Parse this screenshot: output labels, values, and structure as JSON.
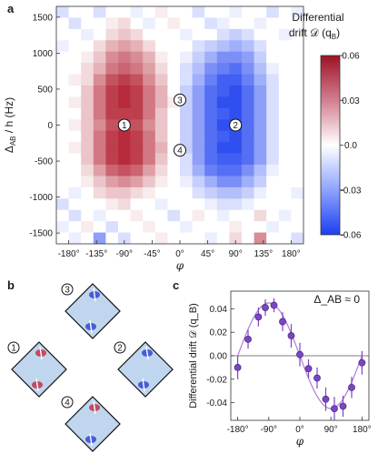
{
  "panels": {
    "a": {
      "label": "a"
    },
    "b": {
      "label": "b"
    },
    "c": {
      "label": "c"
    }
  },
  "heatmap": {
    "xlabel": "φ",
    "ylabel": "Δ_AB / h (Hz)",
    "xticks": [
      "-180°",
      "-135°",
      "-90°",
      "-45°",
      "0°",
      "45°",
      "90°",
      "135°",
      "180°"
    ],
    "yticks": [
      "1500",
      "1000",
      "500",
      "0",
      "-500",
      "-1000",
      "-1500"
    ],
    "markers": [
      {
        "label": "1",
        "phi": -90,
        "delta": 0
      },
      {
        "label": "2",
        "phi": 90,
        "delta": 0
      },
      {
        "label": "3",
        "phi": 0,
        "delta": 350
      },
      {
        "label": "4",
        "phi": 0,
        "delta": -350
      }
    ]
  },
  "colorbar": {
    "title_line1": "Differential",
    "title_line2": "drift 𝒟 (q",
    "title_sub": "B",
    "title_end": ")",
    "ticks": [
      "0.06",
      "0.03",
      "0.0",
      "-0.03",
      "-0.06"
    ],
    "vmin": -0.06,
    "vmax": 0.06
  },
  "lattices": [
    {
      "label": "3",
      "blobs": "blue"
    },
    {
      "label": "1",
      "blobs": "red"
    },
    {
      "label": "2",
      "blobs": "blue"
    },
    {
      "label": "4",
      "blobs": "mixed"
    }
  ],
  "colors": {
    "positive": "#b0182a",
    "negative": "#1c3ff0",
    "neutral": "#ffffff",
    "line": "#b07cd8",
    "marker": "#7b45c4",
    "lattice_bg": "#bfd6ee"
  },
  "chart_data": [
    {
      "type": "heatmap",
      "title": "",
      "xlabel": "φ",
      "ylabel": "Δ_AB / h (Hz)",
      "xlim": [
        -200,
        200
      ],
      "ylim": [
        -1650,
        1650
      ],
      "x_centers_deg": [
        -190,
        -170,
        -150,
        -130,
        -110,
        -90,
        -70,
        -50,
        -30,
        -10,
        10,
        30,
        50,
        70,
        90,
        110,
        130,
        150,
        170,
        190
      ],
      "y_centers_hz": [
        1500,
        1350,
        1200,
        1050,
        900,
        750,
        600,
        450,
        300,
        150,
        0,
        -150,
        -300,
        -450,
        -600,
        -750,
        -900,
        -1050,
        -1200,
        -1350,
        -1500
      ],
      "colorscale_range": [
        -0.06,
        0.06
      ],
      "values_rows_top_to_bottom": [
        [
          -0.01,
          0,
          0,
          -0.01,
          0,
          0,
          -0.005,
          0,
          0.005,
          0,
          0,
          -0.01,
          0,
          0,
          -0.005,
          0,
          0,
          -0.01,
          0,
          -0.005
        ],
        [
          0,
          -0.01,
          0,
          0,
          0.005,
          0.01,
          0,
          -0.005,
          0,
          0.005,
          0,
          0,
          -0.01,
          -0.005,
          0,
          0,
          -0.005,
          0,
          0,
          0
        ],
        [
          0,
          0,
          -0.005,
          0,
          0.01,
          0.015,
          0.01,
          0,
          0,
          0,
          -0.005,
          0,
          0,
          -0.01,
          -0.015,
          -0.01,
          0,
          0,
          -0.005,
          0
        ],
        [
          -0.005,
          0,
          0,
          0.01,
          0.02,
          0.025,
          0.02,
          0.01,
          0,
          0,
          0,
          -0.01,
          -0.015,
          -0.02,
          -0.025,
          -0.02,
          -0.01,
          0,
          0,
          0
        ],
        [
          0,
          0,
          0.005,
          0.015,
          0.03,
          0.035,
          0.03,
          0.02,
          0.005,
          0,
          -0.005,
          -0.015,
          -0.025,
          -0.035,
          -0.035,
          -0.03,
          -0.015,
          0,
          0,
          0
        ],
        [
          0,
          0,
          0.01,
          0.02,
          0.035,
          0.04,
          0.035,
          0.025,
          0.01,
          0,
          -0.01,
          -0.02,
          -0.035,
          -0.04,
          -0.045,
          -0.035,
          -0.02,
          -0.005,
          0,
          0
        ],
        [
          0,
          0.005,
          0.01,
          0.03,
          0.045,
          0.05,
          0.045,
          0.03,
          0.015,
          0,
          -0.01,
          -0.025,
          -0.04,
          -0.05,
          -0.05,
          -0.04,
          -0.025,
          -0.01,
          0,
          0
        ],
        [
          0,
          0,
          0.015,
          0.035,
          0.05,
          0.055,
          0.05,
          0.035,
          0.02,
          0,
          -0.015,
          -0.03,
          -0.045,
          -0.05,
          -0.055,
          -0.045,
          -0.03,
          -0.01,
          0,
          0
        ],
        [
          0,
          0.005,
          0.015,
          0.035,
          0.05,
          0.055,
          0.05,
          0.035,
          0.02,
          0.005,
          -0.015,
          -0.03,
          -0.045,
          -0.055,
          -0.055,
          -0.045,
          -0.03,
          -0.01,
          0,
          0
        ],
        [
          0,
          0,
          0.015,
          0.035,
          0.05,
          0.05,
          0.05,
          0.035,
          0.015,
          0,
          -0.015,
          -0.03,
          -0.045,
          -0.05,
          -0.055,
          -0.045,
          -0.03,
          -0.01,
          0,
          0
        ],
        [
          0,
          0.005,
          0.015,
          0.03,
          0.045,
          0.05,
          0.045,
          0.03,
          0.015,
          0,
          -0.015,
          -0.03,
          -0.045,
          -0.055,
          -0.055,
          -0.045,
          -0.03,
          -0.01,
          0,
          0
        ],
        [
          0,
          0,
          0.015,
          0.035,
          0.05,
          0.055,
          0.05,
          0.035,
          0.015,
          0,
          -0.015,
          -0.03,
          -0.045,
          -0.05,
          -0.055,
          -0.045,
          -0.03,
          -0.01,
          0,
          0
        ],
        [
          0,
          0.005,
          0.015,
          0.035,
          0.05,
          0.055,
          0.05,
          0.035,
          0.02,
          0,
          -0.015,
          -0.03,
          -0.045,
          -0.055,
          -0.055,
          -0.045,
          -0.03,
          -0.01,
          0,
          0
        ],
        [
          0,
          0,
          0.015,
          0.035,
          0.05,
          0.055,
          0.05,
          0.035,
          0.015,
          0,
          -0.01,
          -0.03,
          -0.045,
          -0.05,
          -0.05,
          -0.045,
          -0.03,
          -0.01,
          0,
          0
        ],
        [
          0,
          0,
          0.01,
          0.025,
          0.04,
          0.045,
          0.04,
          0.025,
          0.01,
          0,
          -0.01,
          -0.025,
          -0.04,
          -0.045,
          -0.045,
          -0.035,
          -0.02,
          -0.005,
          0,
          0
        ],
        [
          0,
          0,
          0.005,
          0.015,
          0.025,
          0.03,
          0.025,
          0.015,
          0.005,
          0,
          -0.005,
          -0.015,
          -0.025,
          -0.035,
          -0.035,
          -0.025,
          -0.015,
          0,
          0,
          0
        ],
        [
          0,
          -0.005,
          0,
          0.01,
          0.015,
          0.015,
          0.01,
          0.005,
          0,
          0,
          0,
          -0.01,
          -0.015,
          -0.02,
          -0.02,
          -0.015,
          -0.005,
          0,
          0,
          -0.005
        ],
        [
          -0.01,
          0,
          0,
          0,
          0.005,
          0.01,
          0,
          0,
          -0.005,
          0,
          0,
          0,
          -0.005,
          -0.01,
          -0.01,
          -0.005,
          0,
          0,
          0,
          0
        ],
        [
          0,
          -0.01,
          0,
          -0.005,
          0,
          0,
          0.005,
          0,
          0,
          -0.01,
          0,
          0.005,
          0,
          -0.005,
          0,
          0,
          0.01,
          0,
          -0.005,
          0
        ],
        [
          -0.005,
          0,
          0.005,
          0,
          -0.01,
          0,
          0,
          0.005,
          0,
          0,
          -0.005,
          0,
          0,
          0,
          0.005,
          0,
          0,
          -0.005,
          0,
          0
        ],
        [
          0,
          -0.005,
          0,
          -0.03,
          0,
          -0.01,
          0,
          0,
          0.005,
          0,
          0,
          0,
          -0.005,
          0,
          0.01,
          0,
          0.03,
          0,
          0,
          -0.01
        ]
      ]
    },
    {
      "type": "line",
      "title": "",
      "annotation": "Δ_AB ≈ 0",
      "xlabel": "φ",
      "ylabel": "Differential drift 𝒟 (q_B)",
      "xlim": [
        -200,
        200
      ],
      "ylim": [
        -0.055,
        0.055
      ],
      "xticks": [
        "-180°",
        "-90°",
        "0°",
        "90°",
        "180°"
      ],
      "yticks": [
        "0.04",
        "0.02",
        "0.00",
        "-0.02",
        "-0.04"
      ],
      "series": [
        {
          "x": [
            -180,
            -150,
            -120,
            -100,
            -75,
            -50,
            -25,
            0,
            25,
            50,
            75,
            100,
            125,
            150,
            180
          ],
          "y": [
            -0.01,
            0.014,
            0.033,
            0.041,
            0.043,
            0.029,
            0.017,
            0.001,
            -0.011,
            -0.019,
            -0.037,
            -0.045,
            -0.043,
            -0.027,
            -0.006
          ],
          "yerr": [
            0.01,
            0.008,
            0.008,
            0.007,
            0.006,
            0.008,
            0.01,
            0.01,
            0.008,
            0.009,
            0.01,
            0.01,
            0.009,
            0.009,
            0.01
          ]
        }
      ]
    }
  ]
}
